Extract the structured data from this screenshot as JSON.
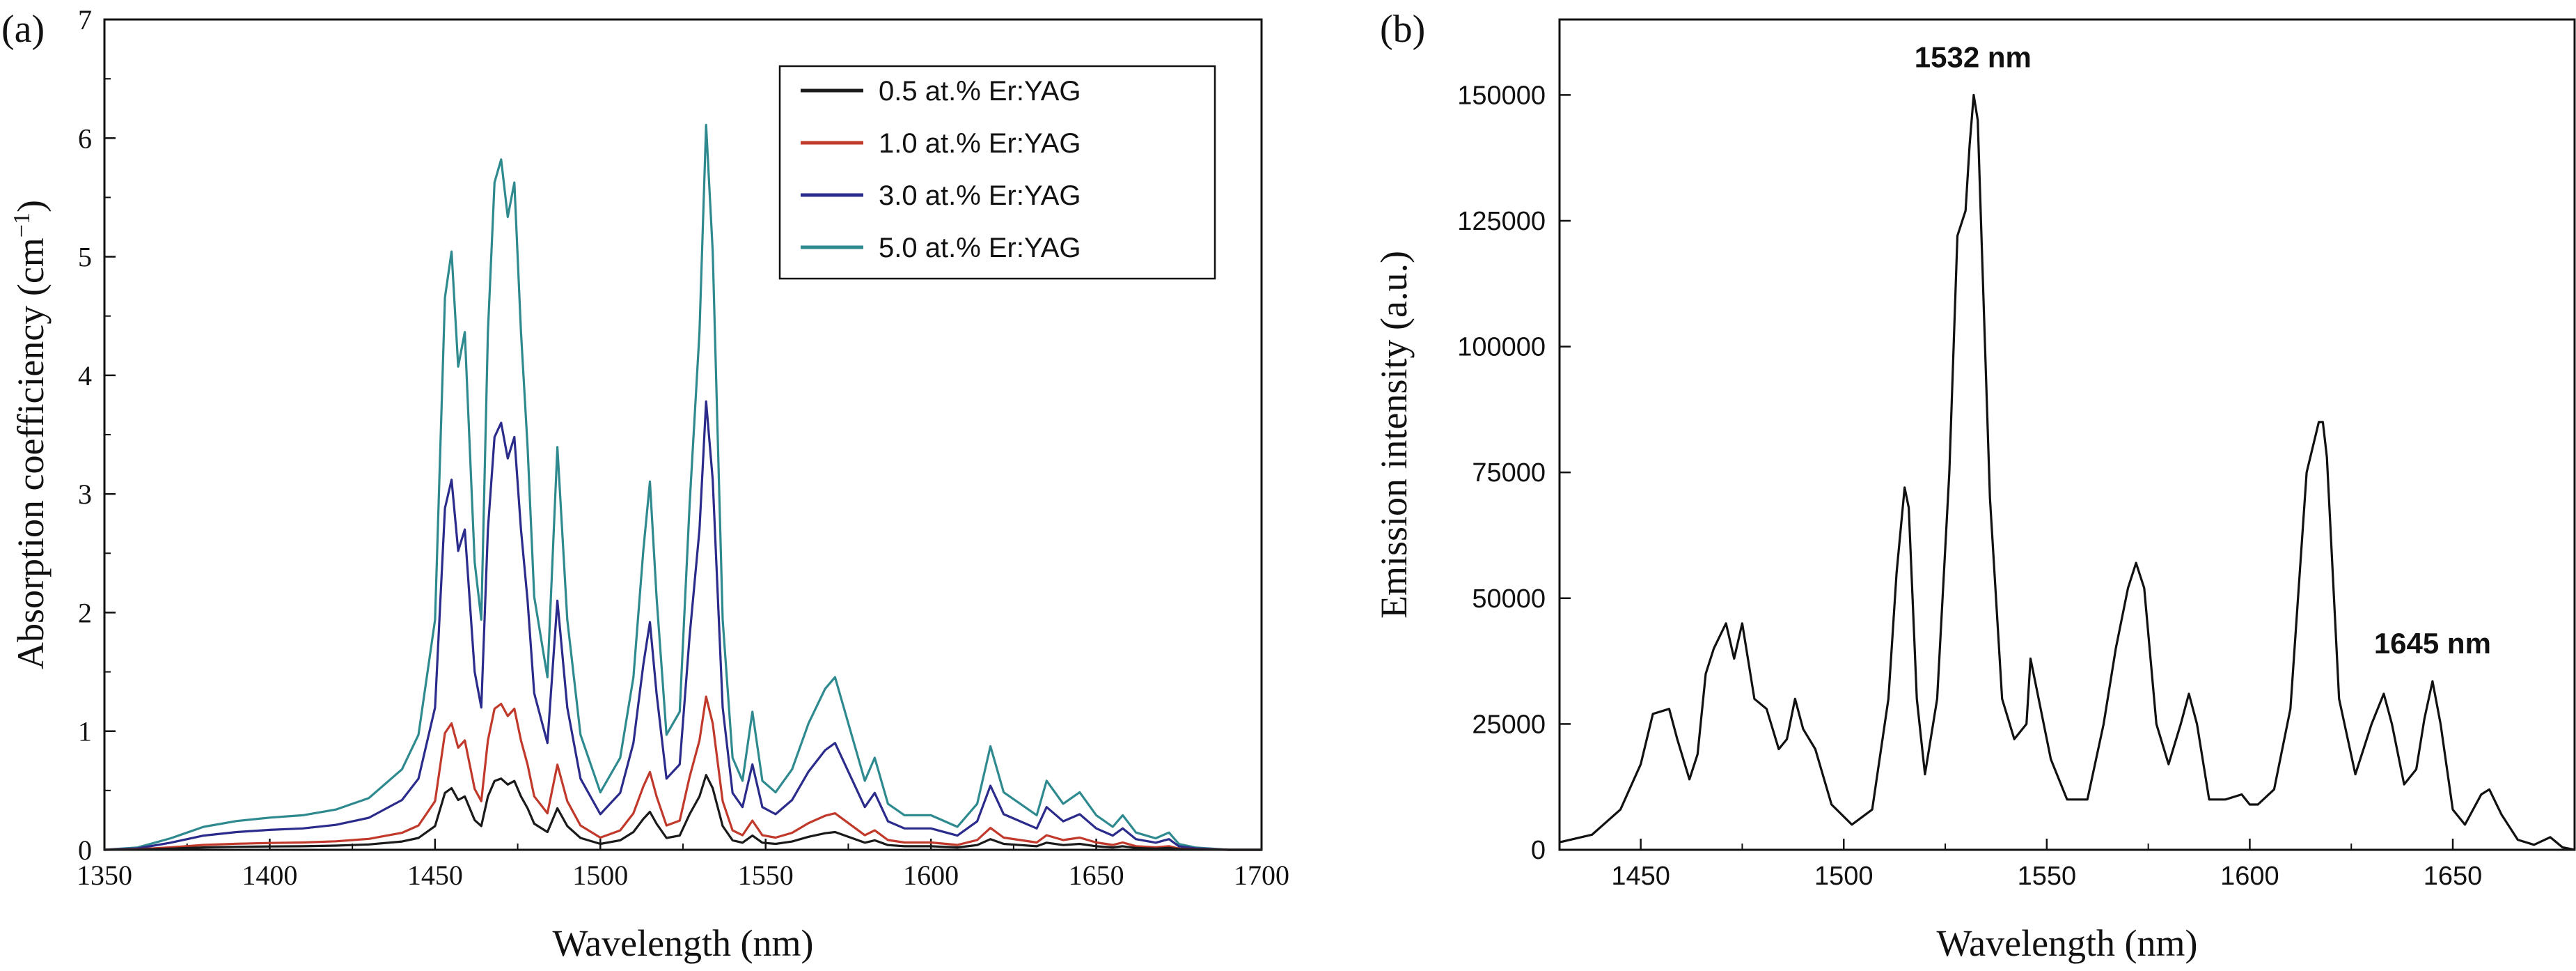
{
  "chart_data": [
    {
      "panel": "(a)",
      "type": "line",
      "title": "",
      "xlabel": "Wavelength (nm)",
      "ylabel": "Absorption coefficiency (cm⁻¹)",
      "ylabel_main": "Absorption coefficiency (cm",
      "ylabel_sup": "−1",
      "ylabel_close": ")",
      "xlim": [
        1350,
        1700
      ],
      "ylim": [
        0,
        7
      ],
      "xticks": [
        1350,
        1400,
        1450,
        1500,
        1550,
        1600,
        1650,
        1700
      ],
      "yticks": [
        0,
        1,
        2,
        3,
        4,
        5,
        6,
        7
      ],
      "legend_position": "top-right",
      "x": [
        1350,
        1360,
        1370,
        1380,
        1390,
        1400,
        1410,
        1420,
        1430,
        1440,
        1445,
        1450,
        1453,
        1455,
        1457,
        1459,
        1462,
        1464,
        1466,
        1468,
        1470,
        1472,
        1474,
        1476,
        1478,
        1480,
        1484,
        1487,
        1490,
        1494,
        1500,
        1506,
        1510,
        1513,
        1515,
        1517,
        1520,
        1524,
        1527,
        1530,
        1532,
        1534,
        1537,
        1540,
        1543,
        1546,
        1549,
        1553,
        1558,
        1563,
        1568,
        1571,
        1575,
        1580,
        1583,
        1587,
        1592,
        1600,
        1608,
        1614,
        1618,
        1622,
        1627,
        1632,
        1635,
        1640,
        1645,
        1650,
        1655,
        1658,
        1662,
        1668,
        1672,
        1675,
        1680,
        1690,
        1700
      ],
      "base": [
        0,
        0.002,
        0.01,
        0.02,
        0.025,
        0.028,
        0.03,
        0.035,
        0.045,
        0.07,
        0.1,
        0.2,
        0.48,
        0.52,
        0.42,
        0.45,
        0.25,
        0.2,
        0.45,
        0.58,
        0.6,
        0.55,
        0.58,
        0.45,
        0.35,
        0.22,
        0.15,
        0.35,
        0.2,
        0.1,
        0.05,
        0.08,
        0.15,
        0.26,
        0.32,
        0.22,
        0.1,
        0.12,
        0.3,
        0.45,
        0.63,
        0.52,
        0.2,
        0.08,
        0.06,
        0.12,
        0.06,
        0.05,
        0.07,
        0.11,
        0.14,
        0.15,
        0.11,
        0.06,
        0.08,
        0.04,
        0.03,
        0.03,
        0.02,
        0.04,
        0.09,
        0.05,
        0.04,
        0.03,
        0.06,
        0.04,
        0.05,
        0.03,
        0.02,
        0.03,
        0.015,
        0.01,
        0.015,
        0.005,
        0.002,
        0,
        0
      ],
      "series": [
        {
          "name": "0.5 at.% Er:YAG",
          "color": "#1a1a1a",
          "scale": 1.0
        },
        {
          "name": "1.0 at.% Er:YAG",
          "color": "#c0392b",
          "scale": 2.05
        },
        {
          "name": "3.0 at.% Er:YAG",
          "color": "#2b2b8c",
          "scale": 6.0
        },
        {
          "name": "5.0 at.% Er:YAG",
          "color": "#2e8a8e",
          "scale": 9.7
        }
      ]
    },
    {
      "panel": "(b)",
      "type": "line",
      "title": "",
      "xlabel": "Wavelength (nm)",
      "ylabel": "Emission intensity (a.u.)",
      "xlim": [
        1430,
        1680
      ],
      "ylim": [
        0,
        165000
      ],
      "xticks": [
        1450,
        1500,
        1550,
        1600,
        1650
      ],
      "yticks": [
        0,
        25000,
        50000,
        75000,
        100000,
        125000,
        150000
      ],
      "series": [
        {
          "name": "Emission",
          "color": "#111111",
          "x": [
            1430,
            1438,
            1445,
            1450,
            1453,
            1455,
            1457,
            1459,
            1462,
            1464,
            1466,
            1468,
            1471,
            1473,
            1475,
            1478,
            1481,
            1484,
            1486,
            1488,
            1490,
            1493,
            1497,
            1502,
            1507,
            1511,
            1513,
            1515,
            1516,
            1518,
            1520,
            1523,
            1526,
            1528,
            1530,
            1531,
            1532,
            1533,
            1534,
            1536,
            1539,
            1542,
            1545,
            1546,
            1548,
            1551,
            1555,
            1560,
            1564,
            1567,
            1570,
            1572,
            1574,
            1577,
            1580,
            1583,
            1585,
            1587,
            1590,
            1594,
            1598,
            1600,
            1602,
            1606,
            1610,
            1614,
            1617,
            1618,
            1619,
            1622,
            1626,
            1630,
            1633,
            1635,
            1638,
            1641,
            1643,
            1645,
            1647,
            1650,
            1653,
            1657,
            1659,
            1662,
            1666,
            1670,
            1674,
            1677,
            1680
          ],
          "y": [
            1500,
            3000,
            8000,
            17000,
            27000,
            27500,
            28000,
            22000,
            14000,
            19000,
            35000,
            40000,
            45000,
            38000,
            45000,
            30000,
            28000,
            20000,
            22000,
            30000,
            24000,
            20000,
            9000,
            5000,
            8000,
            30000,
            55000,
            72000,
            68000,
            30000,
            15000,
            30000,
            75000,
            122000,
            127000,
            140000,
            150000,
            145000,
            120000,
            70000,
            30000,
            22000,
            25000,
            38000,
            30000,
            18000,
            10000,
            10000,
            25000,
            40000,
            52000,
            57000,
            52000,
            25000,
            17000,
            25000,
            31000,
            25000,
            10000,
            10000,
            11000,
            9000,
            9000,
            12000,
            28000,
            75000,
            85000,
            85000,
            78000,
            30000,
            15000,
            25000,
            31000,
            25000,
            13000,
            16000,
            26000,
            33500,
            25000,
            8000,
            5000,
            11000,
            12000,
            7000,
            2000,
            1000,
            2500,
            500,
            0
          ]
        }
      ],
      "annotations": [
        {
          "text": "1532 nm",
          "x": 1532,
          "y": 150000
        },
        {
          "text": "1645 nm",
          "x": 1645,
          "y": 33500
        }
      ]
    }
  ]
}
